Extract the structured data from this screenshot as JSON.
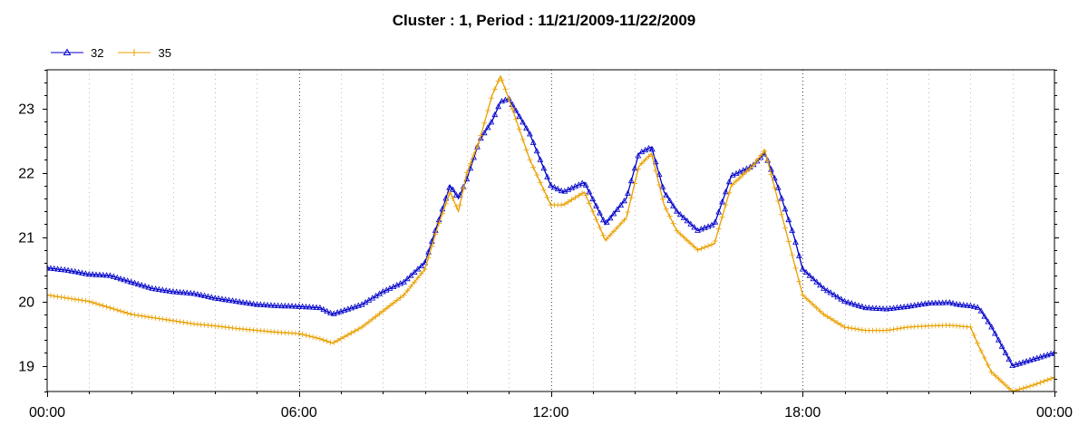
{
  "chart_data": {
    "type": "line",
    "title": "Cluster : 1, Period : 11/21/2009-11/22/2009",
    "xlabel": "",
    "ylabel": "",
    "x_ticks": [
      "00:00",
      "06:00",
      "12:00",
      "18:00",
      "00:00"
    ],
    "y_ticks": [
      "19",
      "20",
      "21",
      "22",
      "23"
    ],
    "xlim_hours": [
      0,
      24
    ],
    "ylim": [
      18.6,
      23.6
    ],
    "grid": "dotted",
    "legend_position": "top-left",
    "series": [
      {
        "name": "32",
        "color": "#0000c8",
        "marker": "triangle",
        "x_hours": [
          0,
          0.5,
          1,
          1.5,
          2,
          2.5,
          3,
          3.5,
          4,
          4.5,
          5,
          5.5,
          6,
          6.5,
          6.8,
          7.5,
          8,
          8.5,
          9,
          9.3,
          9.6,
          9.8,
          10,
          10.3,
          10.6,
          10.8,
          11,
          11.5,
          12,
          12.3,
          12.8,
          13.3,
          13.8,
          14.1,
          14.4,
          14.7,
          15,
          15.5,
          15.9,
          16.3,
          16.8,
          17.1,
          17.4,
          17.8,
          18,
          18.5,
          19,
          19.5,
          20,
          20.5,
          21,
          21.5,
          21.7,
          22,
          22.2,
          22.5,
          23,
          23.5,
          24
        ],
        "values": [
          20.52,
          20.48,
          20.42,
          20.4,
          20.3,
          20.2,
          20.15,
          20.12,
          20.05,
          20.0,
          19.95,
          19.93,
          19.92,
          19.9,
          19.8,
          19.95,
          20.15,
          20.3,
          20.6,
          21.2,
          21.8,
          21.6,
          21.9,
          22.5,
          22.8,
          23.1,
          23.15,
          22.6,
          21.8,
          21.7,
          21.85,
          21.2,
          21.6,
          22.3,
          22.4,
          21.7,
          21.4,
          21.1,
          21.2,
          21.95,
          22.1,
          22.3,
          21.8,
          21.0,
          20.5,
          20.2,
          20.0,
          19.9,
          19.88,
          19.92,
          19.97,
          19.98,
          19.95,
          19.93,
          19.9,
          19.6,
          19.0,
          19.1,
          19.2
        ]
      },
      {
        "name": "35",
        "color": "#e8a000",
        "marker": "plus",
        "x_hours": [
          0,
          0.5,
          1,
          1.5,
          2,
          2.5,
          3,
          3.5,
          4,
          4.5,
          5,
          5.5,
          6,
          6.5,
          6.8,
          7.5,
          8,
          8.5,
          9,
          9.3,
          9.6,
          9.8,
          10,
          10.3,
          10.6,
          10.8,
          11,
          11.5,
          12,
          12.3,
          12.8,
          13.3,
          13.8,
          14.1,
          14.4,
          14.7,
          15,
          15.5,
          15.9,
          16.3,
          16.8,
          17.1,
          17.4,
          17.8,
          18,
          18.5,
          19,
          19.5,
          20,
          20.5,
          21,
          21.5,
          21.7,
          22,
          22.2,
          22.5,
          23,
          23.5,
          24
        ],
        "values": [
          20.1,
          20.05,
          20.0,
          19.9,
          19.8,
          19.75,
          19.7,
          19.65,
          19.62,
          19.58,
          19.55,
          19.52,
          19.5,
          19.42,
          19.35,
          19.6,
          19.85,
          20.1,
          20.5,
          21.15,
          21.7,
          21.4,
          22.0,
          22.5,
          23.2,
          23.5,
          23.15,
          22.2,
          21.5,
          21.5,
          21.7,
          20.95,
          21.3,
          22.1,
          22.3,
          21.5,
          21.1,
          20.8,
          20.9,
          21.8,
          22.1,
          22.35,
          21.6,
          20.6,
          20.1,
          19.8,
          19.6,
          19.55,
          19.55,
          19.6,
          19.62,
          19.63,
          19.62,
          19.6,
          19.3,
          18.9,
          18.6,
          18.7,
          18.82
        ]
      }
    ]
  }
}
